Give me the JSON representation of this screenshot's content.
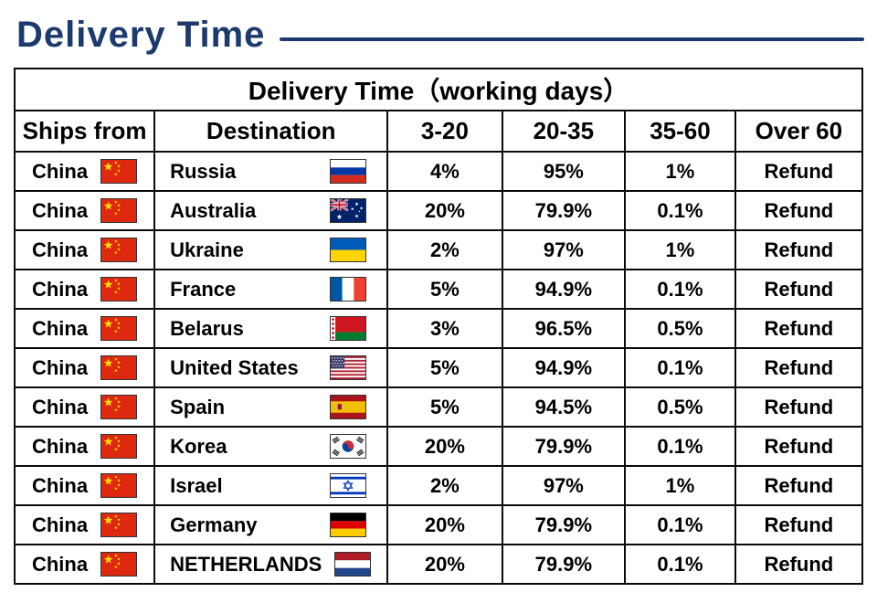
{
  "page": {
    "title": "Delivery Time",
    "accent_color": "#1d3a6e",
    "grid_color": "#0a0a0a"
  },
  "table": {
    "title": "Delivery Time（working days）",
    "headers": [
      "Ships from",
      "Destination",
      "3-20",
      "20-35",
      "35-60",
      "Over 60"
    ],
    "rows": [
      {
        "ships_from": "China",
        "ships_flag": "china-flag",
        "destination": "Russia",
        "dest_flag": "russia-flag",
        "p3_20": "4%",
        "p20_35": "95%",
        "p35_60": "1%",
        "over_60": "Refund"
      },
      {
        "ships_from": "China",
        "ships_flag": "china-flag",
        "destination": "Australia",
        "dest_flag": "australia-flag",
        "p3_20": "20%",
        "p20_35": "79.9%",
        "p35_60": "0.1%",
        "over_60": "Refund"
      },
      {
        "ships_from": "China",
        "ships_flag": "china-flag",
        "destination": "Ukraine",
        "dest_flag": "ukraine-flag",
        "p3_20": "2%",
        "p20_35": "97%",
        "p35_60": "1%",
        "over_60": "Refund"
      },
      {
        "ships_from": "China",
        "ships_flag": "china-flag",
        "destination": "France",
        "dest_flag": "france-flag",
        "p3_20": "5%",
        "p20_35": "94.9%",
        "p35_60": "0.1%",
        "over_60": "Refund"
      },
      {
        "ships_from": "China",
        "ships_flag": "china-flag",
        "destination": "Belarus",
        "dest_flag": "belarus-flag",
        "p3_20": "3%",
        "p20_35": "96.5%",
        "p35_60": "0.5%",
        "over_60": "Refund"
      },
      {
        "ships_from": "China",
        "ships_flag": "china-flag",
        "destination": "United States",
        "dest_flag": "united-states-flag",
        "p3_20": "5%",
        "p20_35": "94.9%",
        "p35_60": "0.1%",
        "over_60": "Refund"
      },
      {
        "ships_from": "China",
        "ships_flag": "china-flag",
        "destination": "Spain",
        "dest_flag": "spain-flag",
        "p3_20": "5%",
        "p20_35": "94.5%",
        "p35_60": "0.5%",
        "over_60": "Refund"
      },
      {
        "ships_from": "China",
        "ships_flag": "china-flag",
        "destination": "Korea",
        "dest_flag": "korea-flag",
        "p3_20": "20%",
        "p20_35": "79.9%",
        "p35_60": "0.1%",
        "over_60": "Refund"
      },
      {
        "ships_from": "China",
        "ships_flag": "china-flag",
        "destination": "Israel",
        "dest_flag": "israel-flag",
        "p3_20": "2%",
        "p20_35": "97%",
        "p35_60": "1%",
        "over_60": "Refund"
      },
      {
        "ships_from": "China",
        "ships_flag": "china-flag",
        "destination": "Germany",
        "dest_flag": "germany-flag",
        "p3_20": "20%",
        "p20_35": "79.9%",
        "p35_60": "0.1%",
        "over_60": "Refund"
      },
      {
        "ships_from": "China",
        "ships_flag": "china-flag",
        "destination": "NETHERLANDS",
        "dest_flag": "netherlands-flag",
        "p3_20": "20%",
        "p20_35": "79.9%",
        "p35_60": "0.1%",
        "over_60": "Refund"
      }
    ]
  }
}
